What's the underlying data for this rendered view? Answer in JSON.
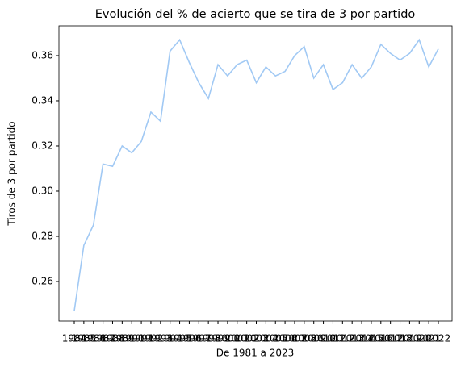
{
  "chart_data": {
    "type": "line",
    "title": "Evolución del % de acierto que se tira de 3 por partido",
    "x_label": "De 1981 a 2023",
    "y_label": "Tiros de 3 por partido",
    "categories": [
      "1984",
      "1985",
      "1986",
      "1987",
      "1988",
      "1989",
      "1990",
      "1991",
      "1992",
      "1993",
      "1994",
      "1995",
      "1996",
      "1997",
      "1998",
      "1999",
      "2000",
      "2001",
      "2002",
      "2003",
      "2004",
      "2005",
      "2006",
      "2007",
      "2008",
      "2009",
      "2010",
      "2011",
      "2012",
      "2013",
      "2014",
      "2015",
      "2016",
      "2017",
      "2018",
      "2019",
      "2020",
      "2021",
      "2022"
    ],
    "series": [
      {
        "name": "Tiros de 3 por partido",
        "color": "#a1c9f4",
        "values": [
          0.247,
          0.276,
          0.285,
          0.312,
          0.311,
          0.32,
          0.317,
          0.322,
          0.335,
          0.331,
          0.362,
          0.367,
          0.357,
          0.348,
          0.341,
          0.356,
          0.351,
          0.356,
          0.358,
          0.348,
          0.355,
          0.351,
          0.353,
          0.36,
          0.364,
          0.35,
          0.356,
          0.345,
          0.348,
          0.356,
          0.35,
          0.355,
          0.365,
          0.361,
          0.358,
          0.361,
          0.367,
          0.355,
          0.363
        ]
      }
    ],
    "ylim": [
      0.2425,
      0.3732
    ],
    "yticks": [
      0.26,
      0.28,
      {
        "value": 0.3,
        "label": "0.30"
      },
      0.32,
      0.34,
      0.36
    ],
    "grid": false
  }
}
